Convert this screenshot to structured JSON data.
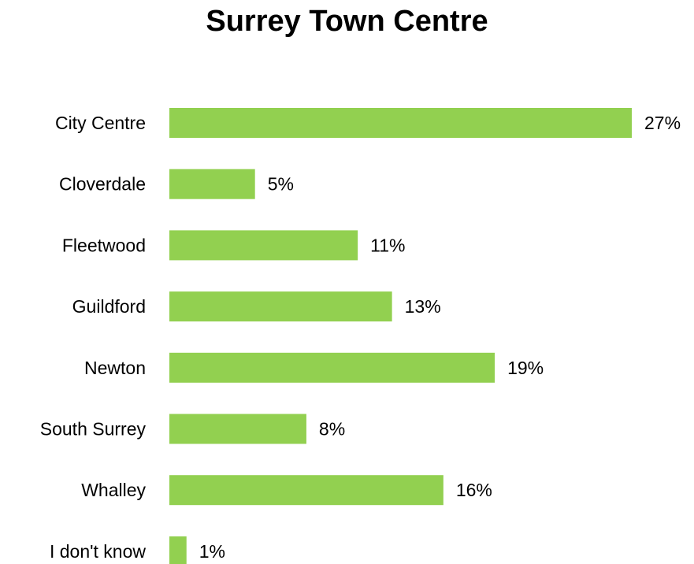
{
  "chart_data": {
    "type": "bar",
    "orientation": "horizontal",
    "title": "Surrey Town Centre",
    "categories": [
      "City Centre",
      "Cloverdale",
      "Fleetwood",
      "Guildford",
      "Newton",
      "South Surrey",
      "Whalley",
      "I don't know"
    ],
    "values": [
      27,
      5,
      11,
      13,
      19,
      8,
      16,
      1
    ],
    "value_labels": [
      "27%",
      "5%",
      "11%",
      "13%",
      "19%",
      "8%",
      "16%",
      "1%"
    ],
    "xlim": [
      0,
      27
    ],
    "grid": false,
    "legend": "none",
    "bar_color": "#92d050"
  }
}
